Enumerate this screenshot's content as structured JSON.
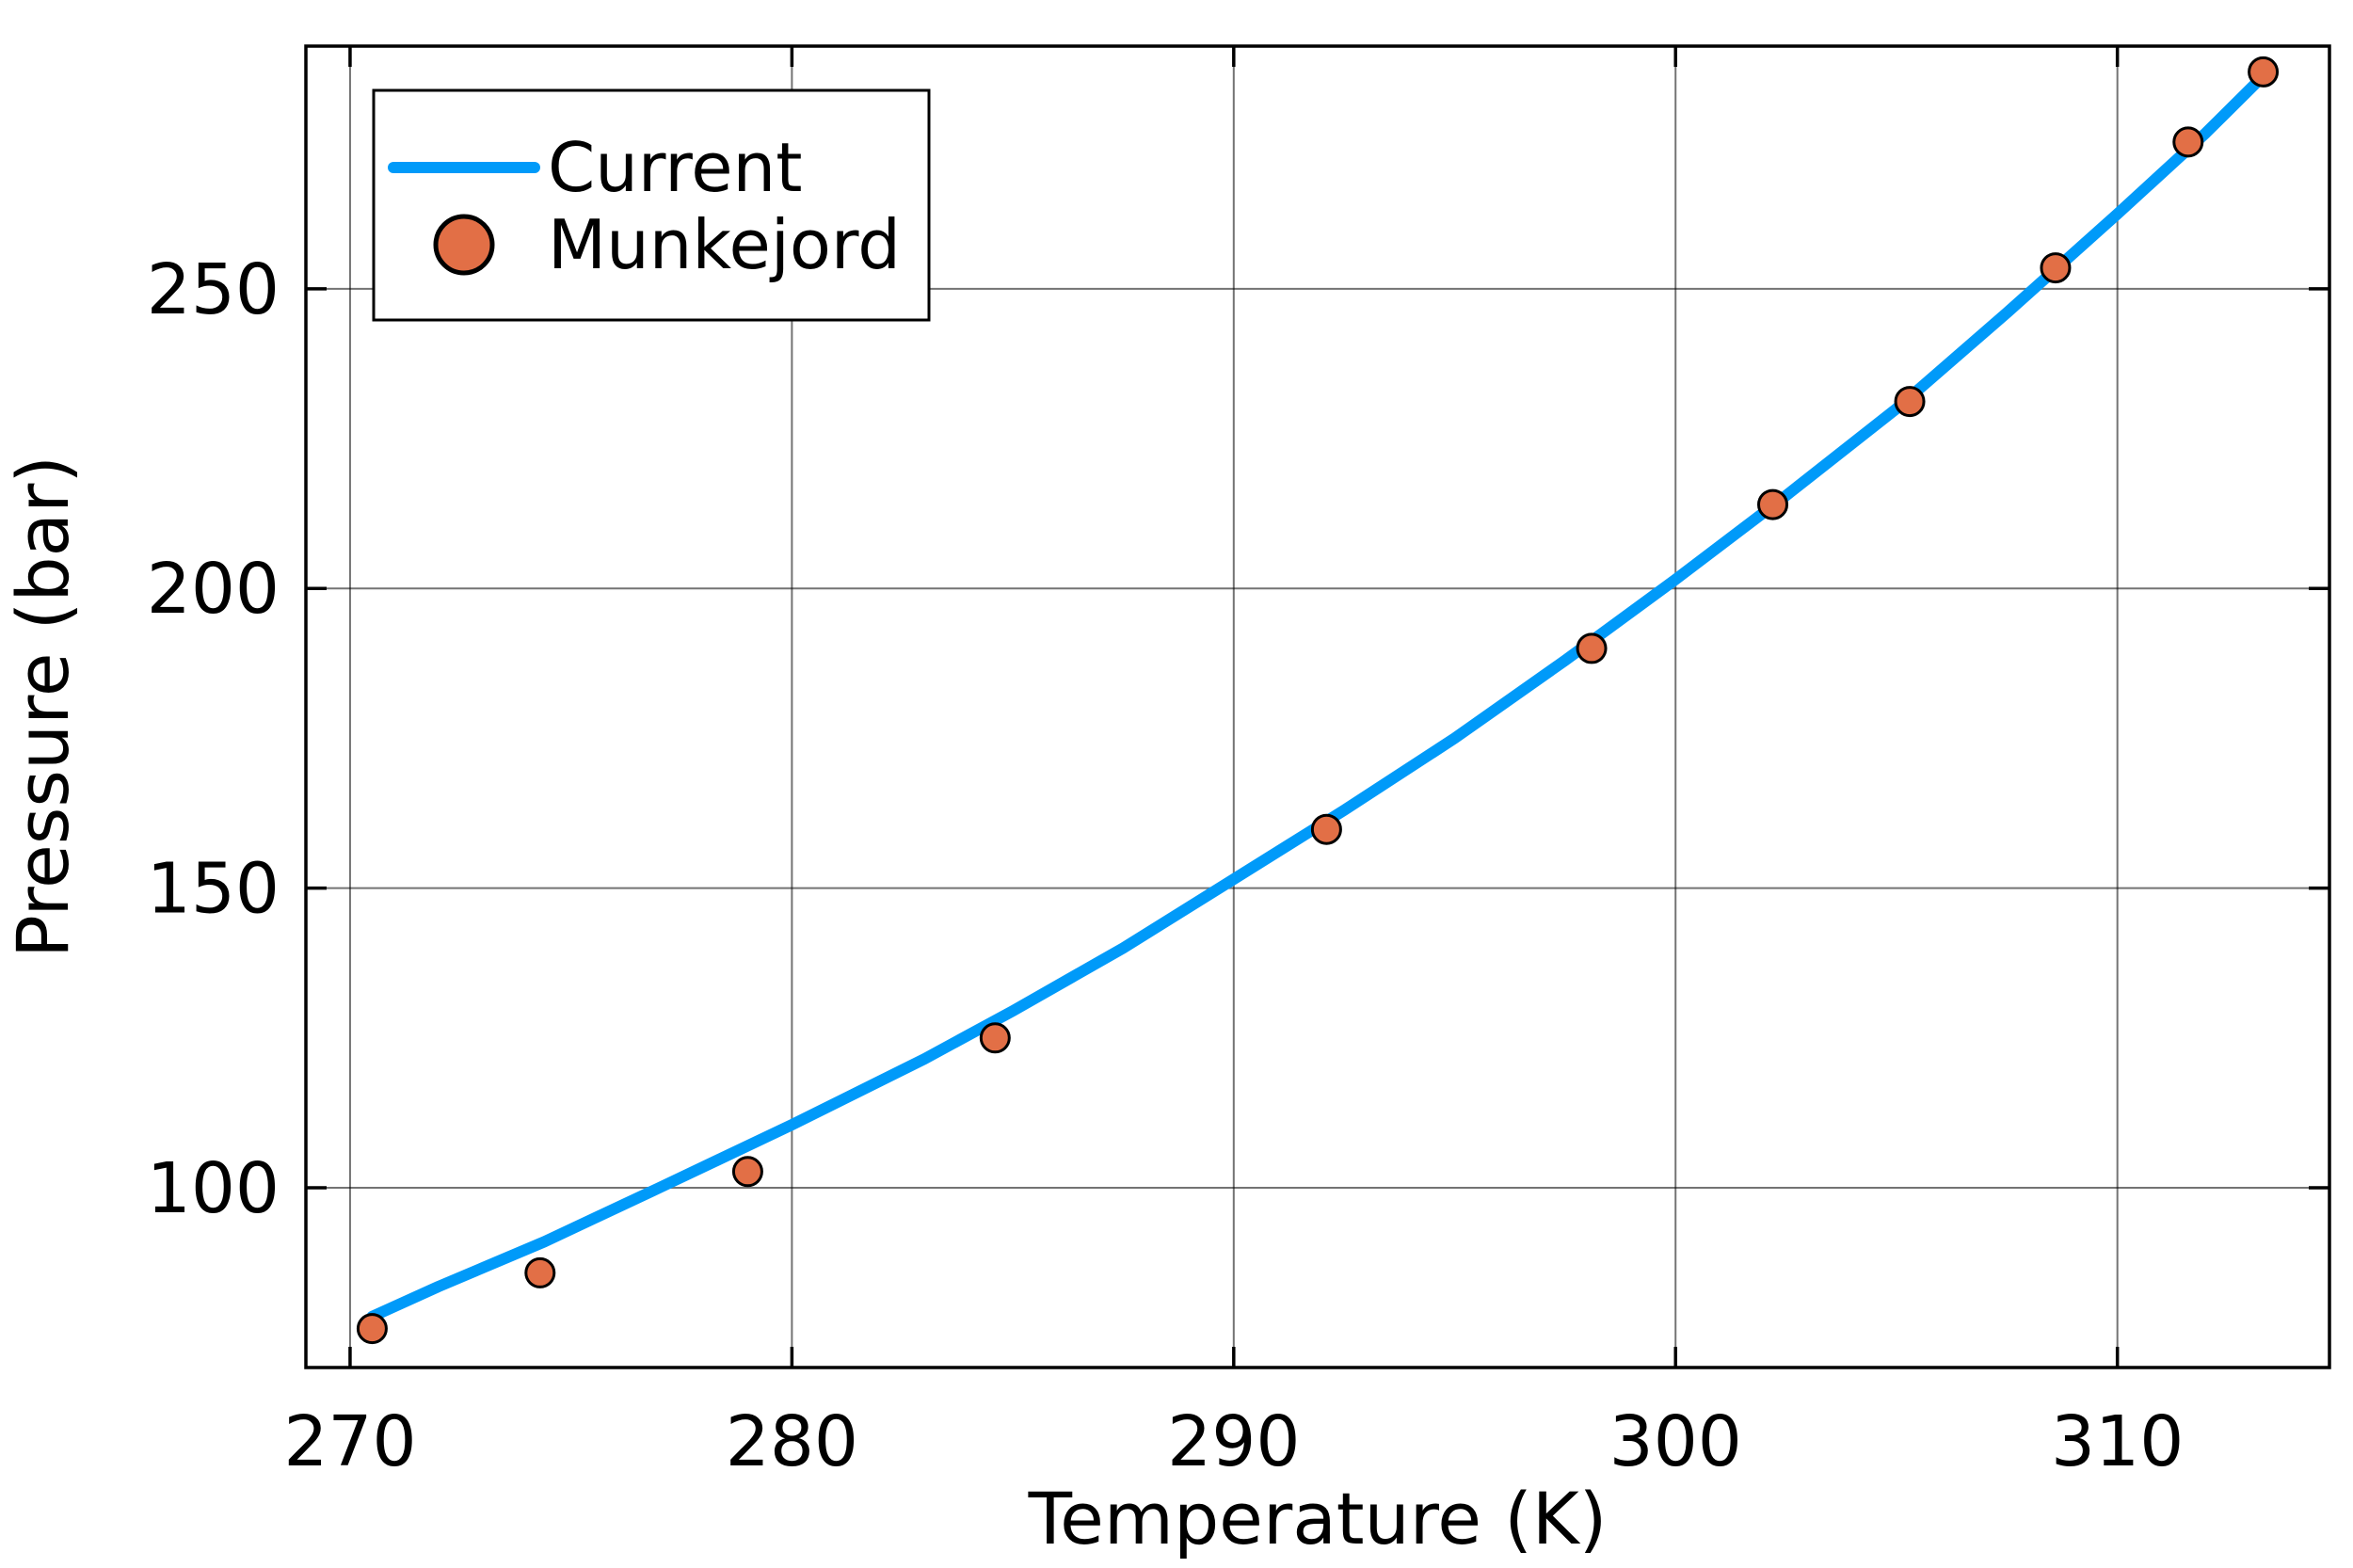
{
  "chart_data": {
    "type": "line",
    "title": "",
    "xlabel": "Temperature (K)",
    "ylabel": "Pressure (bar)",
    "xlim": [
      269.0,
      314.8
    ],
    "ylim": [
      70.0,
      290.5
    ],
    "xticks": [
      270,
      280,
      290,
      300,
      310
    ],
    "yticks": [
      100,
      150,
      200,
      250
    ],
    "grid": true,
    "legend_position": "top-left",
    "series": [
      {
        "name": "Current",
        "kind": "line",
        "color": "#009af9",
        "x": [
          270.5,
          272.0,
          274.4,
          277.0,
          280.0,
          283.0,
          285.0,
          287.5,
          290.0,
          292.5,
          295.0,
          297.5,
          300.0,
          302.5,
          305.0,
          307.5,
          310.0,
          312.0,
          313.3
        ],
        "y": [
          78.5,
          83.5,
          91.0,
          100.0,
          110.5,
          121.5,
          129.5,
          140.0,
          151.5,
          163.0,
          175.0,
          188.0,
          201.5,
          215.5,
          230.0,
          246.0,
          262.5,
          276.0,
          285.5
        ]
      },
      {
        "name": "Munkejord",
        "kind": "scatter",
        "color": "#e26f46",
        "x": [
          270.5,
          274.3,
          279.0,
          284.6,
          292.1,
          298.1,
          302.2,
          305.3,
          308.6,
          311.6,
          313.3
        ],
        "y": [
          76.5,
          85.8,
          102.7,
          125.0,
          159.8,
          190.0,
          214.0,
          231.2,
          253.5,
          274.5,
          286.2
        ]
      }
    ]
  }
}
